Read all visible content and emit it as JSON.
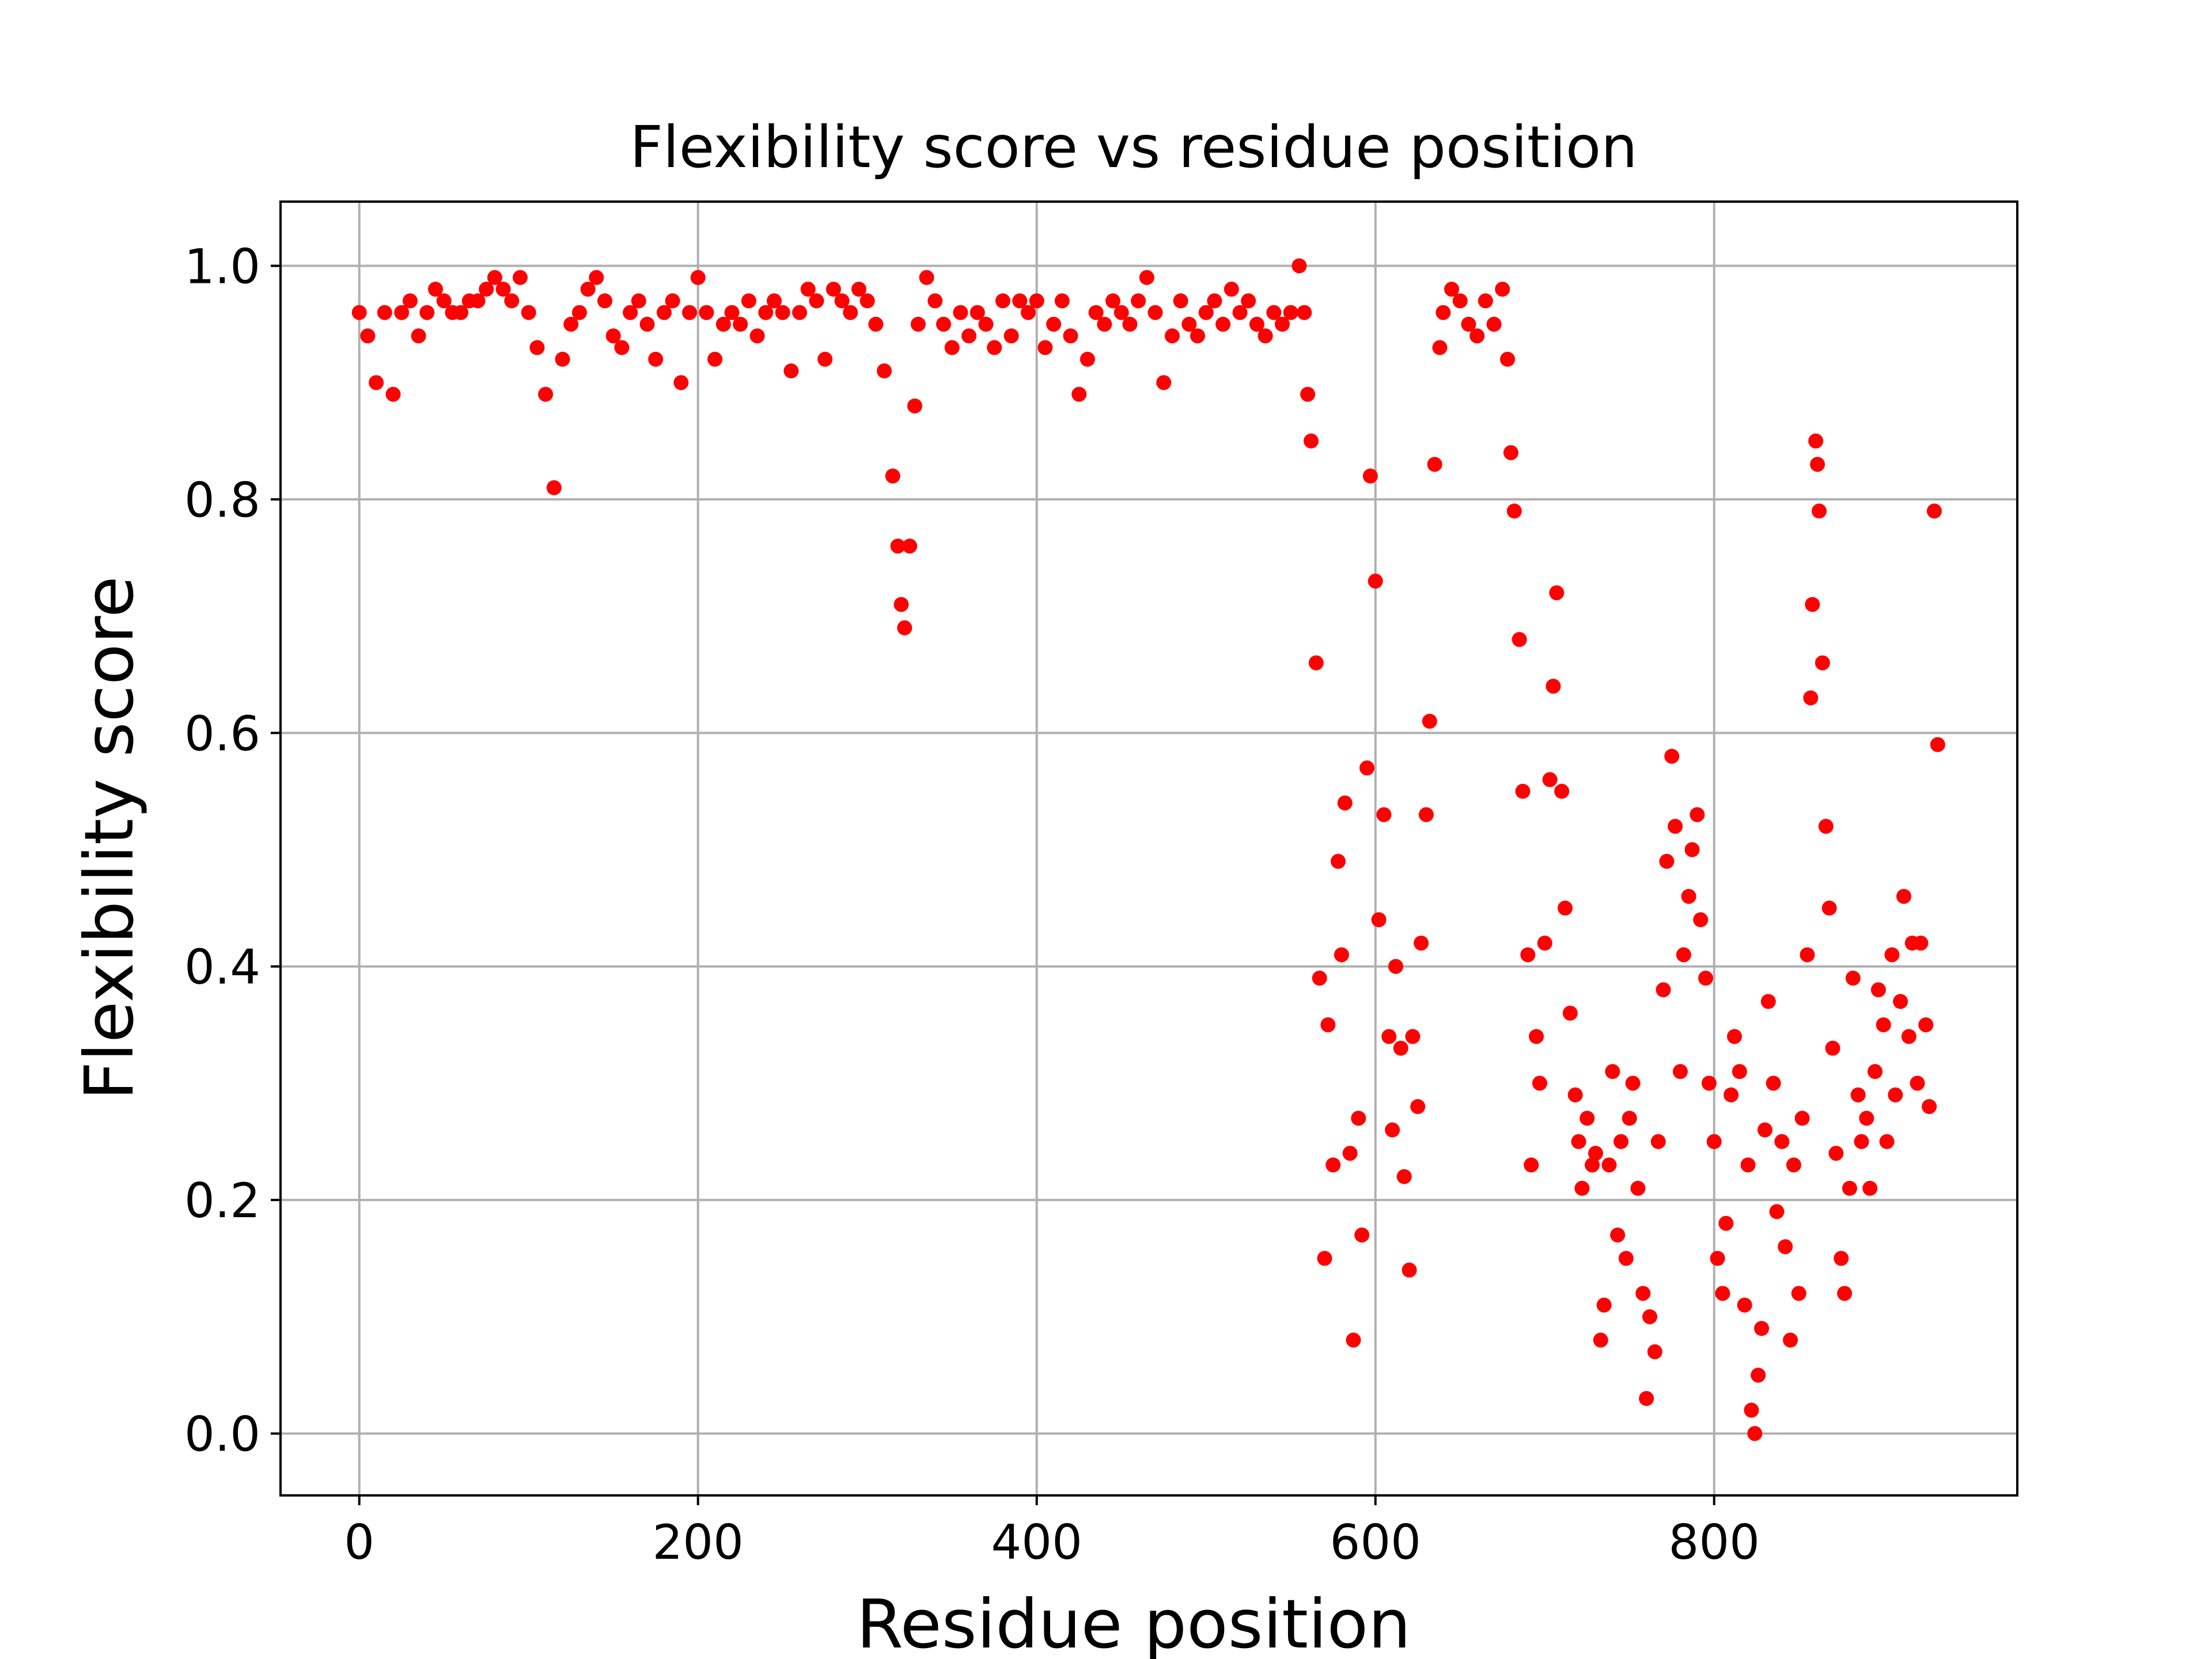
{
  "chart_data": {
    "type": "scatter",
    "title": "Flexibility score vs residue position",
    "x_label": "Residue position",
    "y_label": "Flexibility score",
    "color": "#ff0000",
    "grid": true,
    "xlim": [
      -46.5,
      979
    ],
    "ylim": [
      -0.053,
      1.055
    ],
    "xticks": [
      0,
      200,
      400,
      600,
      800
    ],
    "yticks": [
      {
        "value": 0,
        "label": "0.0"
      },
      0.2,
      0.4,
      0.6,
      0.8,
      {
        "value": 1,
        "label": "1.0"
      }
    ],
    "x": [
      0,
      5,
      10,
      15,
      20,
      25,
      30,
      35,
      40,
      45,
      50,
      55,
      60,
      65,
      70,
      75,
      80,
      85,
      90,
      95,
      100,
      105,
      110,
      115,
      120,
      125,
      130,
      135,
      140,
      145,
      150,
      155,
      160,
      165,
      170,
      175,
      180,
      185,
      190,
      195,
      200,
      205,
      210,
      215,
      220,
      225,
      230,
      235,
      240,
      245,
      250,
      255,
      260,
      265,
      270,
      275,
      280,
      285,
      290,
      295,
      300,
      305,
      310,
      315,
      318,
      320,
      322,
      325,
      328,
      330,
      335,
      340,
      345,
      350,
      355,
      360,
      365,
      370,
      375,
      380,
      385,
      390,
      395,
      400,
      405,
      410,
      415,
      420,
      425,
      430,
      435,
      440,
      445,
      450,
      455,
      460,
      465,
      470,
      475,
      480,
      485,
      490,
      495,
      500,
      505,
      510,
      515,
      520,
      525,
      530,
      535,
      540,
      545,
      550,
      555,
      558,
      560,
      562,
      565,
      567,
      570,
      572,
      575,
      578,
      580,
      582,
      585,
      587,
      590,
      592,
      595,
      597,
      600,
      602,
      605,
      608,
      610,
      612,
      615,
      617,
      620,
      622,
      625,
      627,
      630,
      632,
      635,
      638,
      640,
      645,
      650,
      655,
      660,
      665,
      670,
      675,
      678,
      680,
      682,
      685,
      687,
      690,
      692,
      695,
      697,
      700,
      703,
      705,
      707,
      710,
      712,
      715,
      718,
      720,
      722,
      725,
      728,
      730,
      733,
      735,
      738,
      740,
      743,
      745,
      748,
      750,
      752,
      755,
      758,
      760,
      762,
      765,
      767,
      770,
      772,
      775,
      777,
      780,
      782,
      785,
      787,
      790,
      792,
      795,
      797,
      800,
      802,
      805,
      807,
      810,
      812,
      815,
      818,
      820,
      822,
      824,
      826,
      828,
      830,
      832,
      835,
      837,
      840,
      842,
      845,
      847,
      850,
      852,
      855,
      857,
      858,
      860,
      861,
      862,
      864,
      866,
      868,
      870,
      872,
      875,
      877,
      880,
      882,
      885,
      887,
      890,
      892,
      895,
      897,
      900,
      902,
      905,
      907,
      910,
      912,
      915,
      917,
      920,
      922,
      925,
      927,
      930,
      932
    ],
    "values": [
      0.96,
      0.94,
      0.9,
      0.96,
      0.89,
      0.96,
      0.97,
      0.94,
      0.96,
      0.98,
      0.97,
      0.96,
      0.96,
      0.97,
      0.97,
      0.98,
      0.99,
      0.98,
      0.97,
      0.99,
      0.96,
      0.93,
      0.89,
      0.81,
      0.92,
      0.95,
      0.96,
      0.98,
      0.99,
      0.97,
      0.94,
      0.93,
      0.96,
      0.97,
      0.95,
      0.92,
      0.96,
      0.97,
      0.9,
      0.96,
      0.99,
      0.96,
      0.92,
      0.95,
      0.96,
      0.95,
      0.97,
      0.94,
      0.96,
      0.97,
      0.96,
      0.91,
      0.96,
      0.98,
      0.97,
      0.92,
      0.98,
      0.97,
      0.96,
      0.98,
      0.97,
      0.95,
      0.91,
      0.82,
      0.76,
      0.71,
      0.69,
      0.76,
      0.88,
      0.95,
      0.99,
      0.97,
      0.95,
      0.93,
      0.96,
      0.94,
      0.96,
      0.95,
      0.93,
      0.97,
      0.94,
      0.97,
      0.96,
      0.97,
      0.93,
      0.95,
      0.97,
      0.94,
      0.89,
      0.92,
      0.96,
      0.95,
      0.97,
      0.96,
      0.95,
      0.97,
      0.99,
      0.96,
      0.9,
      0.94,
      0.97,
      0.95,
      0.94,
      0.96,
      0.97,
      0.95,
      0.98,
      0.96,
      0.97,
      0.95,
      0.94,
      0.96,
      0.95,
      0.96,
      1.0,
      0.96,
      0.89,
      0.85,
      0.66,
      0.39,
      0.15,
      0.35,
      0.23,
      0.49,
      0.41,
      0.54,
      0.24,
      0.08,
      0.27,
      0.17,
      0.57,
      0.82,
      0.73,
      0.44,
      0.53,
      0.34,
      0.26,
      0.4,
      0.33,
      0.22,
      0.14,
      0.34,
      0.28,
      0.42,
      0.53,
      0.61,
      0.83,
      0.93,
      0.96,
      0.98,
      0.97,
      0.95,
      0.94,
      0.97,
      0.95,
      0.98,
      0.92,
      0.84,
      0.79,
      0.68,
      0.55,
      0.41,
      0.23,
      0.34,
      0.3,
      0.42,
      0.56,
      0.64,
      0.72,
      0.55,
      0.45,
      0.36,
      0.29,
      0.25,
      0.21,
      0.27,
      0.23,
      0.24,
      0.08,
      0.11,
      0.23,
      0.31,
      0.17,
      0.25,
      0.15,
      0.27,
      0.3,
      0.21,
      0.12,
      0.03,
      0.1,
      0.07,
      0.25,
      0.38,
      0.49,
      0.58,
      0.52,
      0.31,
      0.41,
      0.46,
      0.5,
      0.53,
      0.44,
      0.39,
      0.3,
      0.25,
      0.15,
      0.12,
      0.18,
      0.29,
      0.34,
      0.31,
      0.11,
      0.23,
      0.02,
      0.0,
      0.05,
      0.09,
      0.26,
      0.37,
      0.3,
      0.19,
      0.25,
      0.16,
      0.08,
      0.23,
      0.12,
      0.27,
      0.41,
      0.63,
      0.71,
      0.85,
      0.83,
      0.79,
      0.66,
      0.52,
      0.45,
      0.33,
      0.24,
      0.15,
      0.12,
      0.21,
      0.39,
      0.29,
      0.25,
      0.27,
      0.21,
      0.31,
      0.38,
      0.35,
      0.25,
      0.41,
      0.29,
      0.37,
      0.46,
      0.34,
      0.42,
      0.3,
      0.42,
      0.35,
      0.28,
      0.79,
      0.59
    ]
  }
}
